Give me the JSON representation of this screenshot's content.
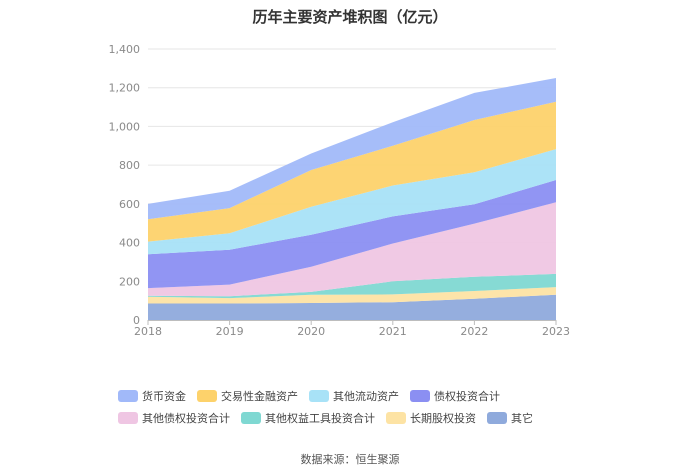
{
  "chart_data": {
    "type": "area",
    "stacked": true,
    "title": "历年主要资产堆积图（亿元）",
    "source": "数据来源：恒生聚源",
    "categories": [
      "2018",
      "2019",
      "2020",
      "2021",
      "2022",
      "2023"
    ],
    "y_ticks": [
      "0",
      "200",
      "400",
      "600",
      "800",
      "1,000",
      "1,200",
      "1,400"
    ],
    "ylim": [
      0,
      1400
    ],
    "grid": true,
    "legend_position": "bottom",
    "series": [
      {
        "name": "其它",
        "color": "#8faadc",
        "values": [
          85,
          85,
          88,
          92,
          110,
          130
        ]
      },
      {
        "name": "长期股权投资",
        "color": "#fde3a4",
        "values": [
          35,
          28,
          42,
          40,
          40,
          40
        ]
      },
      {
        "name": "其他权益工具投资合计",
        "color": "#7fd8d2",
        "values": [
          5,
          10,
          15,
          68,
          73,
          68
        ]
      },
      {
        "name": "其他债权投资合计",
        "color": "#efc6e3",
        "values": [
          40,
          60,
          130,
          195,
          275,
          370
        ]
      },
      {
        "name": "债权投资合计",
        "color": "#8b8ff2",
        "values": [
          175,
          180,
          165,
          140,
          100,
          115
        ]
      },
      {
        "name": "其他流动资产",
        "color": "#a8e2f7",
        "values": [
          65,
          85,
          145,
          160,
          165,
          160
        ]
      },
      {
        "name": "交易性金融资产",
        "color": "#fdd26b",
        "values": [
          115,
          130,
          190,
          205,
          270,
          245
        ]
      },
      {
        "name": "货币资金",
        "color": "#a1b9f9",
        "values": [
          80,
          90,
          85,
          122,
          140,
          122
        ]
      }
    ]
  }
}
